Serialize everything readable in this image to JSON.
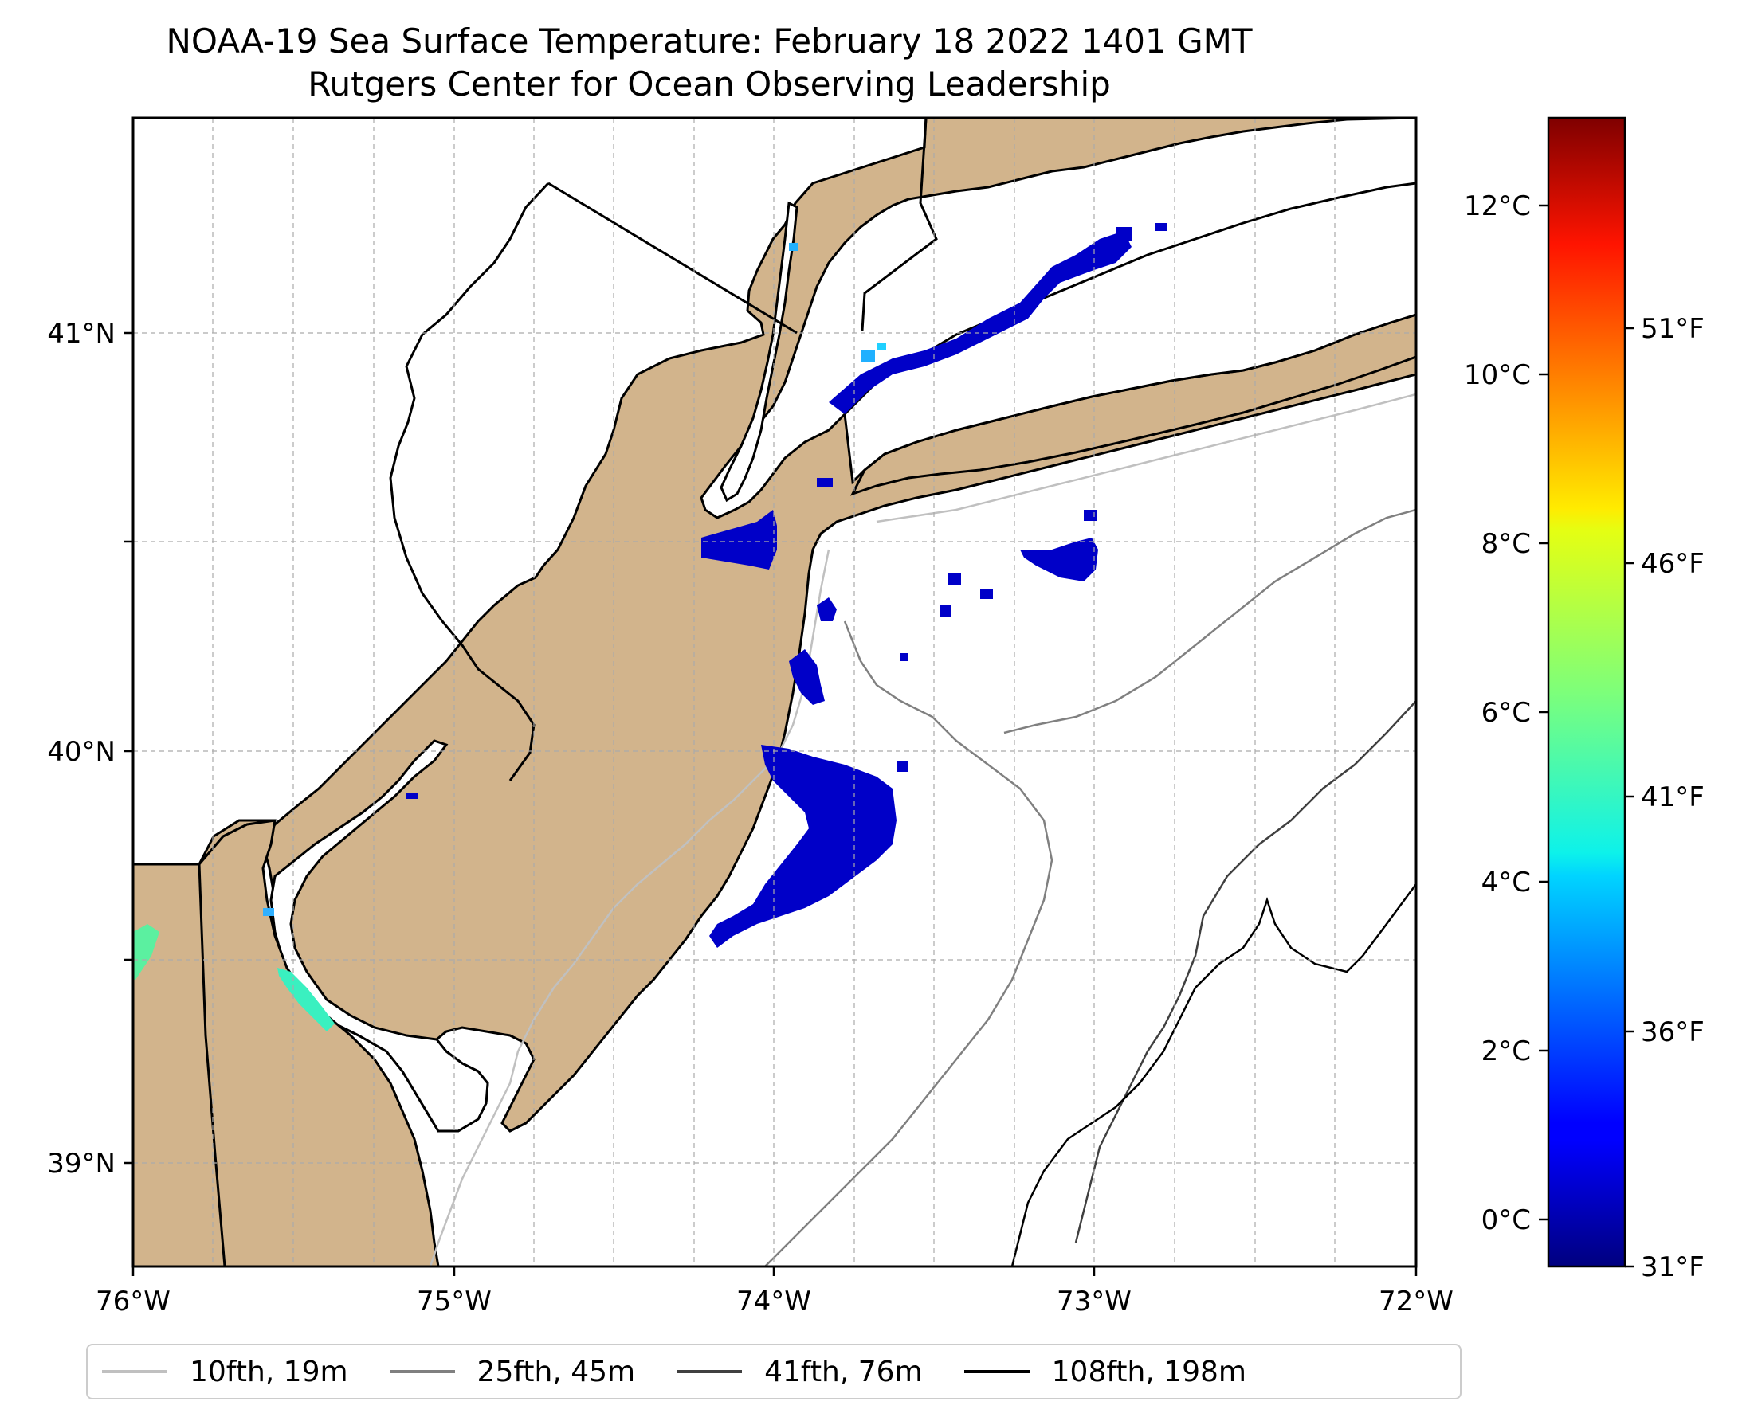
{
  "title_line1": "NOAA-19 Sea Surface Temperature: February 18 2022 1401 GMT",
  "title_line2": "Rutgers Center for Ocean Observing Leadership",
  "map": {
    "lon_range": [
      -76.0,
      -72.0
    ],
    "lat_range": [
      38.75,
      41.5
    ],
    "lat_ticks": [
      "41°N",
      "40°N",
      "39°N"
    ],
    "lon_ticks": [
      "76°W",
      "75°W",
      "74°W",
      "73°W",
      "72°W"
    ],
    "land_color": "#d2b48c",
    "ocean_color": "#ffffff",
    "gridlines": true
  },
  "colorbar": {
    "colormap": "jet",
    "celsius_range": [
      -0.6,
      12.9
    ],
    "celsius_ticks": [
      "12°C",
      "10°C",
      "8°C",
      "6°C",
      "4°C",
      "2°C",
      "0°C"
    ],
    "fahrenheit_ticks": [
      "51°F",
      "46°F",
      "41°F",
      "36°F",
      "31°F"
    ]
  },
  "legend": [
    {
      "label": "10fth, 19m",
      "color": "#c0c0c0"
    },
    {
      "label": "25fth, 45m",
      "color": "#808080"
    },
    {
      "label": "41fth, 76m",
      "color": "#404040"
    },
    {
      "label": "108fth, 198m",
      "color": "#000000"
    }
  ]
}
